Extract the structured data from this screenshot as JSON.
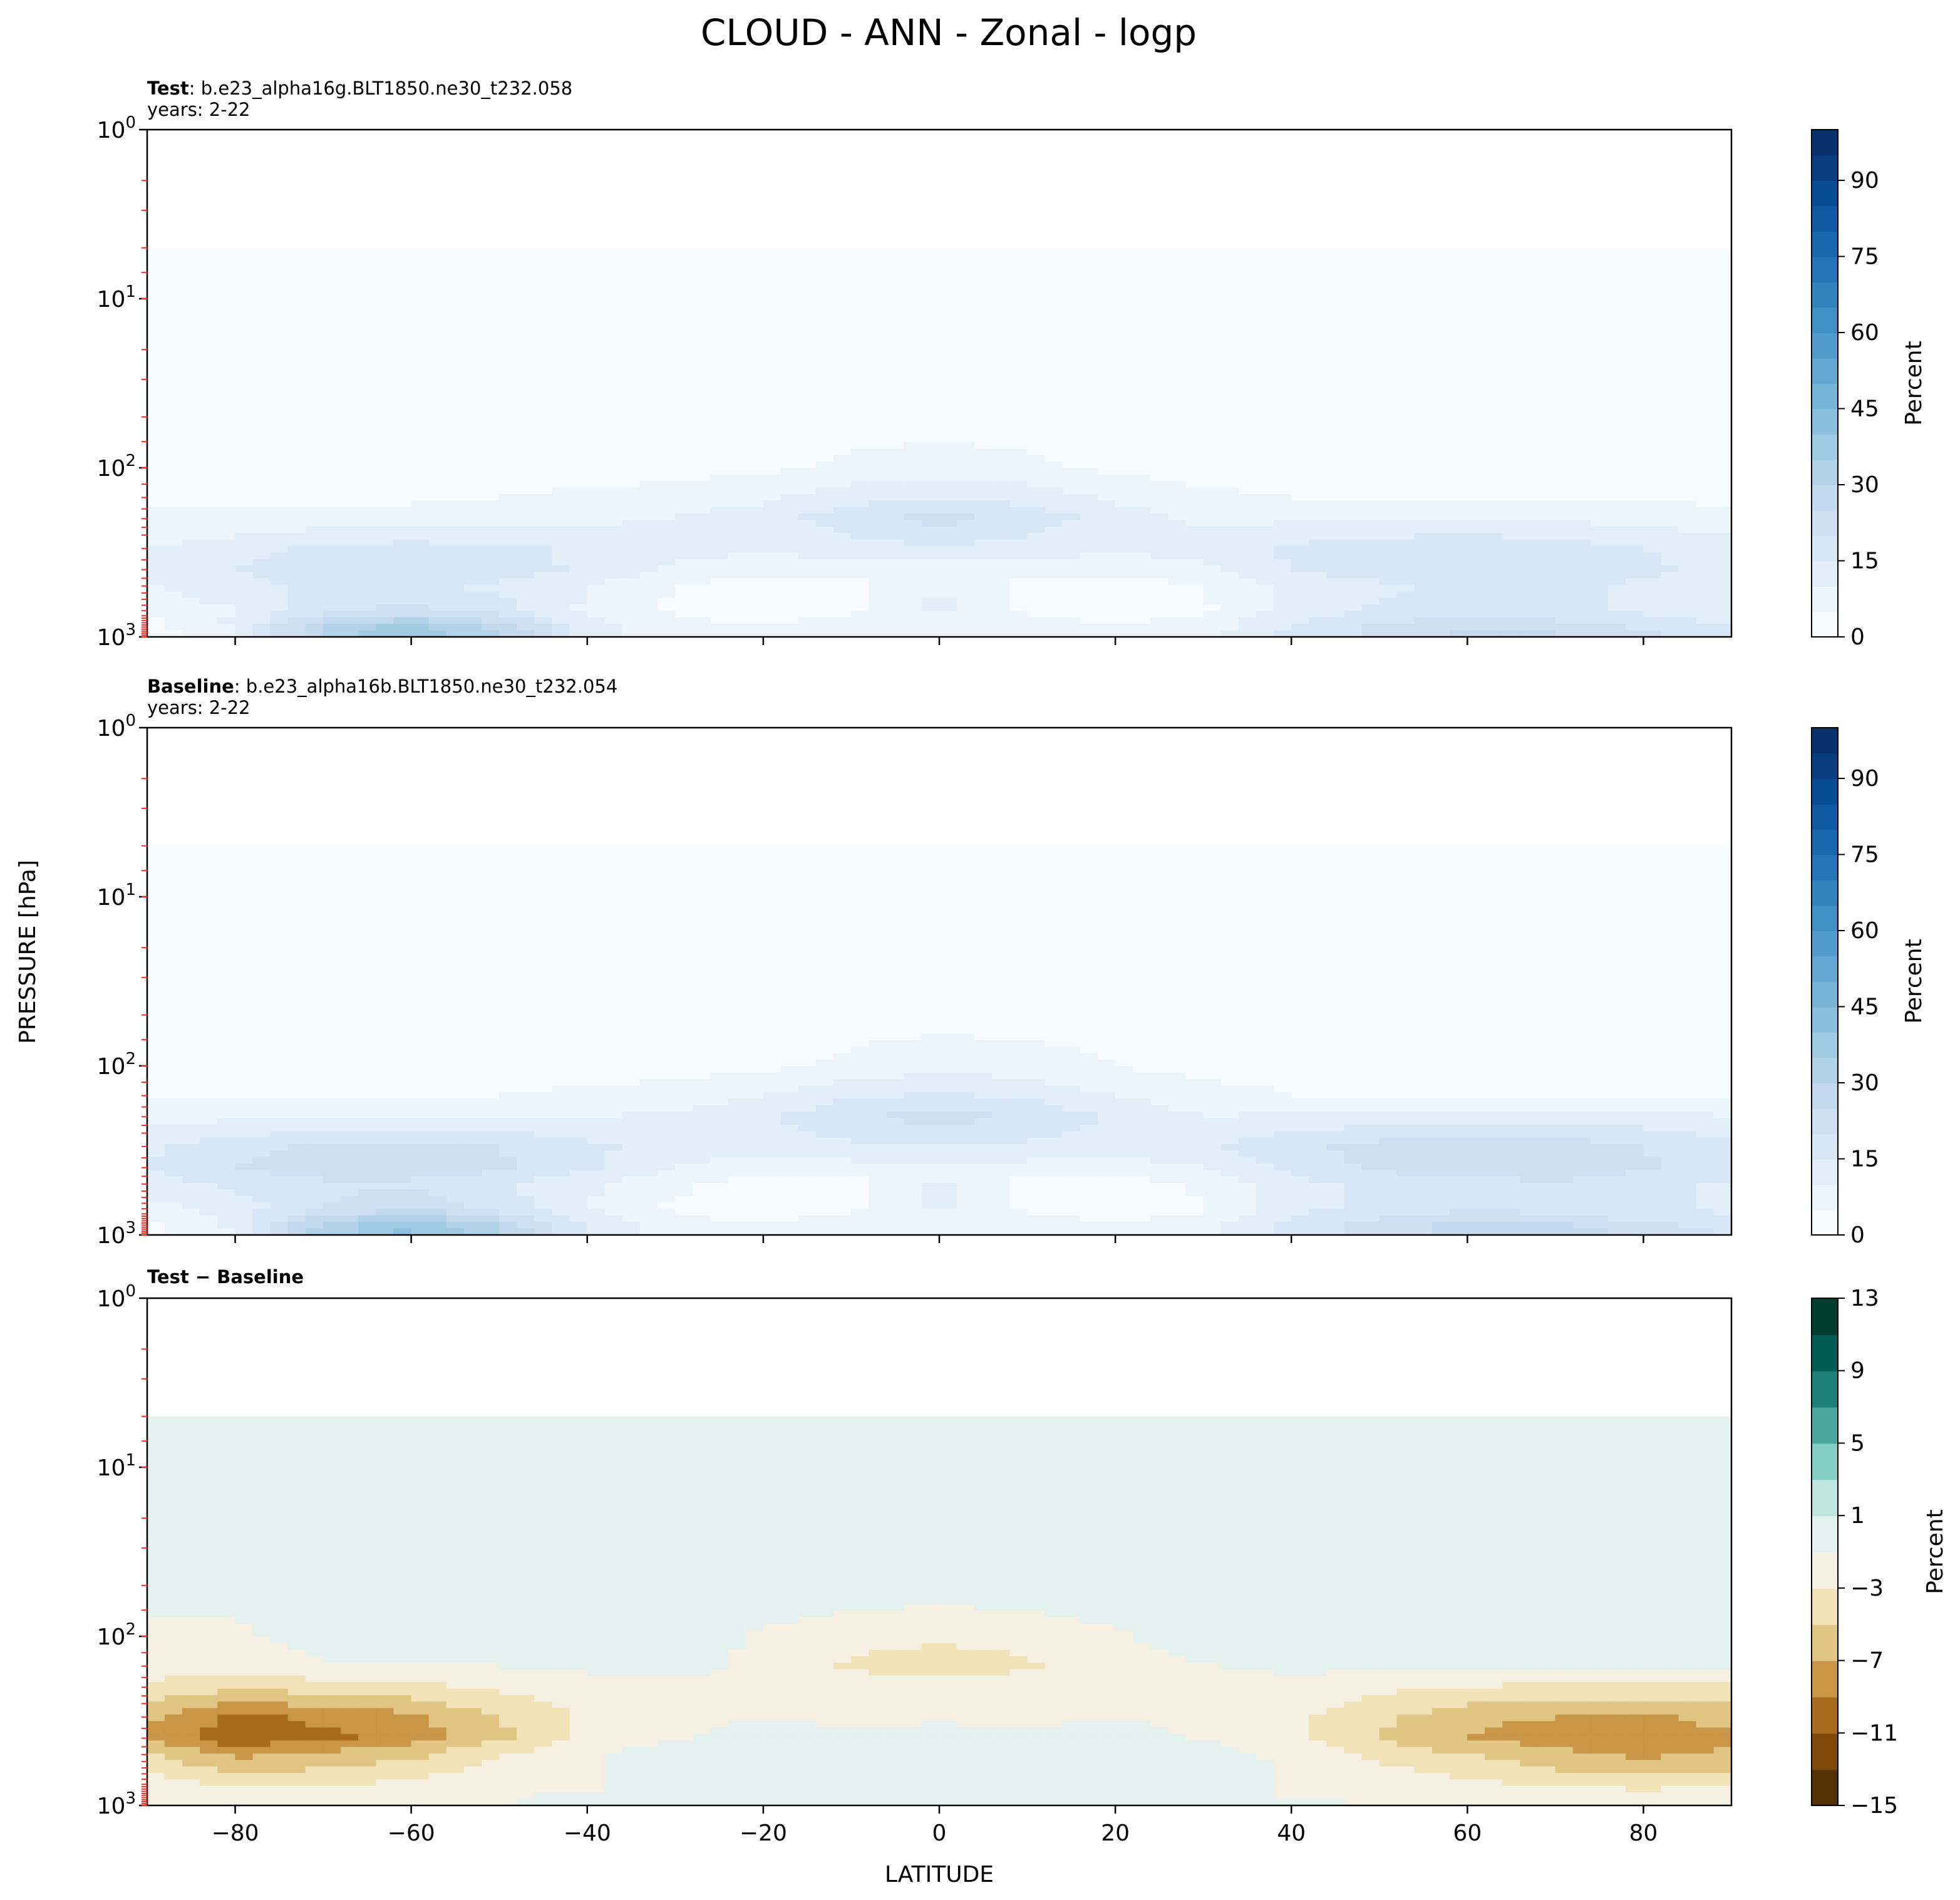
{
  "title": "CLOUD - ANN - Zonal - logp",
  "shared": {
    "xlabel": "LATITUDE",
    "ylabel": "PRESSURE [hPa]",
    "x_ticks": [
      -80,
      -60,
      -40,
      -20,
      0,
      20,
      40,
      60,
      80
    ],
    "y_ticks": [
      {
        "value": 1,
        "base": "10",
        "exp": "0"
      },
      {
        "value": 10,
        "base": "10",
        "exp": "1"
      },
      {
        "value": 100,
        "base": "10",
        "exp": "2"
      },
      {
        "value": 1000,
        "base": "10",
        "exp": "3"
      }
    ],
    "tick_marks_color": "#e8302a"
  },
  "panels": [
    {
      "id": "test",
      "label_bold": "Test",
      "label_rest": ": b.e23_alpha16g.BLT1850.ne30_t232.058",
      "subtitle": "years: 2-22",
      "cbar_label": "Percent",
      "cbar_ticks": [
        "0",
        "15",
        "30",
        "45",
        "60",
        "75",
        "90"
      ],
      "colormap": "Blues"
    },
    {
      "id": "baseline",
      "label_bold": "Baseline",
      "label_rest": ": b.e23_alpha16b.BLT1850.ne30_t232.054",
      "subtitle": "years: 2-22",
      "cbar_label": "Percent",
      "cbar_ticks": [
        "0",
        "15",
        "30",
        "45",
        "60",
        "75",
        "90"
      ],
      "colormap": "Blues"
    },
    {
      "id": "diff",
      "label_bold": "Test − Baseline",
      "label_rest": "",
      "subtitle": "",
      "cbar_label": "Percent",
      "cbar_ticks": [
        "−15",
        "−11",
        "−7",
        "−3",
        "1",
        "5",
        "9",
        "13"
      ],
      "colormap": "BrBG"
    }
  ],
  "chart_data": {
    "type": "heatmap",
    "title": "CLOUD - ANN - Zonal - logp",
    "xlabel": "LATITUDE",
    "ylabel": "PRESSURE [hPa]",
    "xlim": [
      -90,
      90
    ],
    "ylim": [
      1000,
      1
    ],
    "yscale": "log",
    "plots": [
      {
        "name": "Test",
        "case": "b.e23_alpha16g.BLT1850.ne30_t232.058",
        "years": "2-22",
        "units": "Percent",
        "levels": [
          0,
          5,
          10,
          15,
          20,
          25,
          30,
          35,
          40,
          45,
          50,
          55,
          60,
          65,
          70,
          75,
          80,
          85,
          90,
          95,
          100
        ],
        "latitude": [
          -90,
          -80,
          -70,
          -60,
          -50,
          -40,
          -30,
          -20,
          -10,
          0,
          10,
          20,
          30,
          40,
          50,
          60,
          70,
          80,
          90
        ],
        "pressure": [
          5,
          50,
          100,
          150,
          200,
          300,
          400,
          500,
          700,
          850,
          925,
          1000
        ],
        "cloud": [
          [
            3,
            3,
            3,
            3,
            3,
            3,
            3,
            3,
            3,
            3,
            3,
            3,
            3,
            3,
            3,
            3,
            3,
            3,
            3
          ],
          [
            3,
            3,
            3,
            3,
            3,
            3,
            3,
            3,
            3,
            3,
            3,
            3,
            3,
            3,
            3,
            3,
            3,
            3,
            3
          ],
          [
            3,
            3,
            3,
            3,
            3,
            3,
            3,
            4,
            6,
            7,
            6,
            4,
            3,
            3,
            3,
            3,
            3,
            3,
            3
          ],
          [
            4,
            4,
            4,
            4,
            5,
            6,
            7,
            9,
            13,
            15,
            13,
            9,
            6,
            5,
            5,
            4,
            4,
            4,
            4
          ],
          [
            6,
            6,
            7,
            7,
            8,
            9,
            10,
            13,
            18,
            22,
            18,
            13,
            9,
            9,
            10,
            10,
            9,
            8,
            7
          ],
          [
            10,
            13,
            16,
            17,
            16,
            14,
            12,
            11,
            13,
            14,
            13,
            11,
            12,
            16,
            18,
            19,
            18,
            15,
            12
          ],
          [
            11,
            15,
            19,
            20,
            18,
            14,
            9,
            6,
            7,
            8,
            7,
            6,
            9,
            15,
            18,
            20,
            19,
            16,
            13
          ],
          [
            10,
            13,
            16,
            16,
            14,
            10,
            5,
            3,
            3,
            10,
            3,
            3,
            5,
            12,
            14,
            16,
            16,
            14,
            12
          ],
          [
            6,
            10,
            18,
            22,
            17,
            9,
            4,
            3,
            4,
            12,
            4,
            3,
            4,
            12,
            16,
            17,
            16,
            14,
            12
          ],
          [
            3,
            11,
            28,
            35,
            27,
            12,
            6,
            5,
            7,
            6,
            7,
            5,
            7,
            15,
            20,
            24,
            22,
            18,
            15
          ],
          [
            2,
            10,
            34,
            42,
            32,
            14,
            7,
            6,
            7,
            6,
            7,
            6,
            8,
            17,
            22,
            27,
            26,
            22,
            18
          ],
          [
            2,
            8,
            28,
            36,
            28,
            12,
            6,
            5,
            6,
            5,
            6,
            5,
            7,
            15,
            20,
            25,
            24,
            20,
            16
          ]
        ]
      },
      {
        "name": "Baseline",
        "case": "b.e23_alpha16b.BLT1850.ne30_t232.054",
        "years": "2-22",
        "units": "Percent",
        "levels": [
          0,
          5,
          10,
          15,
          20,
          25,
          30,
          35,
          40,
          45,
          50,
          55,
          60,
          65,
          70,
          75,
          80,
          85,
          90,
          95,
          100
        ],
        "latitude": [
          -90,
          -80,
          -70,
          -60,
          -50,
          -40,
          -30,
          -20,
          -10,
          0,
          10,
          20,
          30,
          40,
          50,
          60,
          70,
          80,
          90
        ],
        "pressure": [
          5,
          50,
          100,
          150,
          200,
          300,
          400,
          500,
          700,
          850,
          925,
          1000
        ],
        "cloud": [
          [
            3,
            3,
            3,
            3,
            3,
            3,
            3,
            3,
            3,
            3,
            3,
            3,
            3,
            3,
            3,
            3,
            3,
            3,
            3
          ],
          [
            3,
            3,
            3,
            3,
            3,
            3,
            3,
            3,
            3,
            3,
            3,
            3,
            3,
            3,
            3,
            3,
            3,
            3,
            3
          ],
          [
            3,
            3,
            3,
            3,
            3,
            3,
            3,
            4,
            6,
            8,
            7,
            5,
            3,
            3,
            3,
            3,
            3,
            3,
            3
          ],
          [
            4,
            4,
            4,
            5,
            5,
            6,
            7,
            10,
            14,
            16,
            14,
            10,
            7,
            5,
            5,
            5,
            5,
            5,
            4
          ],
          [
            8,
            9,
            10,
            10,
            10,
            10,
            11,
            14,
            19,
            23,
            19,
            14,
            10,
            11,
            12,
            13,
            13,
            12,
            10
          ],
          [
            14,
            18,
            21,
            22,
            20,
            16,
            13,
            12,
            14,
            15,
            14,
            12,
            14,
            19,
            22,
            24,
            23,
            20,
            16
          ],
          [
            15,
            20,
            24,
            24,
            21,
            16,
            10,
            7,
            8,
            8,
            8,
            7,
            10,
            17,
            21,
            24,
            24,
            21,
            17
          ],
          [
            13,
            16,
            19,
            19,
            16,
            11,
            6,
            3,
            3,
            11,
            3,
            3,
            6,
            13,
            16,
            18,
            19,
            17,
            14
          ],
          [
            8,
            12,
            20,
            24,
            18,
            10,
            4,
            3,
            4,
            12,
            4,
            3,
            4,
            13,
            17,
            19,
            18,
            16,
            14
          ],
          [
            4,
            12,
            30,
            37,
            28,
            13,
            6,
            5,
            7,
            6,
            7,
            5,
            7,
            16,
            21,
            26,
            24,
            20,
            17
          ],
          [
            3,
            11,
            35,
            44,
            33,
            15,
            7,
            6,
            7,
            6,
            7,
            6,
            8,
            18,
            23,
            28,
            28,
            24,
            20
          ],
          [
            3,
            9,
            29,
            37,
            29,
            13,
            6,
            5,
            6,
            5,
            6,
            5,
            7,
            16,
            21,
            26,
            26,
            22,
            18
          ]
        ]
      },
      {
        "name": "Test − Baseline",
        "units": "Percent",
        "levels": [
          -15,
          -13,
          -11,
          -9,
          -7,
          -5,
          -3,
          -1,
          1,
          3,
          5,
          7,
          9,
          11,
          13
        ],
        "latitude": [
          -90,
          -80,
          -70,
          -60,
          -50,
          -40,
          -30,
          -20,
          -10,
          0,
          10,
          20,
          30,
          40,
          50,
          60,
          70,
          80,
          90
        ],
        "pressure": [
          5,
          50,
          100,
          150,
          200,
          300,
          400,
          500,
          700,
          850,
          925,
          1000
        ],
        "difference": [
          [
            0,
            0,
            0,
            0,
            0,
            0,
            0,
            0,
            0,
            0,
            0,
            0,
            0,
            0,
            0,
            0,
            0,
            0,
            0
          ],
          [
            0,
            0,
            0,
            0,
            0,
            0,
            0,
            0,
            0,
            0,
            0,
            0,
            0,
            0,
            0,
            0,
            0,
            0,
            0
          ],
          [
            -1.5,
            -1.5,
            0,
            0,
            0,
            0,
            0,
            -1.2,
            -2,
            -2.5,
            -2,
            -1.2,
            0,
            0,
            0,
            0,
            0,
            0,
            0
          ],
          [
            -2,
            -2,
            -1.2,
            -1.2,
            -1,
            -0.5,
            -0.5,
            -1.5,
            -3.5,
            -4.5,
            -3.5,
            -1.5,
            -1.2,
            -0.5,
            -0.5,
            -1,
            -1,
            -1,
            -1
          ],
          [
            -3.5,
            -4.5,
            -4,
            -3.5,
            -2.5,
            -2.2,
            -1.5,
            -1.2,
            -1.5,
            -1.5,
            -1.5,
            -1.2,
            -1.5,
            -2,
            -2.5,
            -3,
            -3.5,
            -3.5,
            -3.5
          ],
          [
            -6.5,
            -9.5,
            -8.5,
            -7.5,
            -5,
            -2.5,
            -1.5,
            -1.2,
            -1.5,
            -1.5,
            -1.5,
            -1.2,
            -1.5,
            -2.5,
            -4.5,
            -6.5,
            -7,
            -7.5,
            -6
          ],
          [
            -7.5,
            -10.5,
            -9.5,
            -8,
            -5.5,
            -2.5,
            -1.2,
            0,
            -0.5,
            0,
            -0.5,
            0,
            -1.2,
            -2.5,
            -5,
            -7,
            -8,
            -9,
            -7.5
          ],
          [
            -4.5,
            -7.5,
            -6.5,
            -5.5,
            -3,
            -1.2,
            0,
            0,
            0,
            0,
            0,
            0,
            0,
            -1.5,
            -3.5,
            -5,
            -6.5,
            -7.5,
            -6.5
          ],
          [
            -2.5,
            -4,
            -4,
            -3,
            -1.5,
            -1.2,
            0,
            0,
            0,
            0,
            0,
            0,
            0,
            -1.2,
            -2,
            -3,
            -4,
            -4.5,
            -4
          ],
          [
            -1.5,
            -2,
            -2,
            -1.5,
            -1.2,
            -1.2,
            0,
            0,
            0,
            0,
            0,
            0,
            0,
            -1.2,
            -1.5,
            -2,
            -2,
            -2.5,
            -2
          ],
          [
            -1.2,
            -1.5,
            -1.5,
            -1.5,
            -1.2,
            0,
            0,
            0,
            0,
            0,
            0,
            0,
            0,
            -1.2,
            -1.2,
            -1.5,
            -1.5,
            -2,
            -2
          ],
          [
            -1.2,
            -1.2,
            -1.2,
            -1.2,
            -1.2,
            0,
            0,
            0,
            0,
            0,
            0,
            0,
            0,
            0,
            -1.2,
            -1.2,
            -1.2,
            -1.5,
            -1.5
          ]
        ]
      }
    ]
  }
}
